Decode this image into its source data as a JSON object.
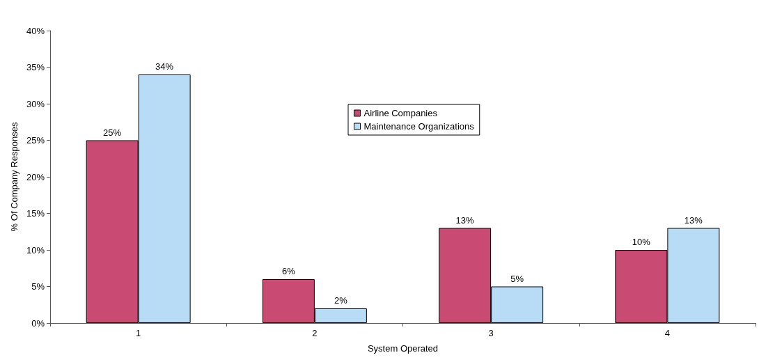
{
  "chart_data": {
    "type": "bar",
    "xlabel": "System Operated",
    "ylabel": "% Of Company Responses",
    "categories": [
      "1",
      "2",
      "3",
      "4"
    ],
    "series": [
      {
        "name": "Airline Companies",
        "color": "#c94a72",
        "values": [
          25,
          6,
          13,
          10
        ],
        "value_labels": [
          "25%",
          "6%",
          "13%",
          "10%"
        ]
      },
      {
        "name": "Maintenance Organizations",
        "color": "#b8dcf6",
        "values": [
          34,
          2,
          5,
          13
        ],
        "value_labels": [
          "34%",
          "2%",
          "5%",
          "13%"
        ]
      }
    ],
    "ylim": [
      0,
      40
    ],
    "yticks": [
      {
        "value": 0,
        "label": "0%"
      },
      {
        "value": 5,
        "label": "5%"
      },
      {
        "value": 10,
        "label": "10%"
      },
      {
        "value": 15,
        "label": "15%"
      },
      {
        "value": 20,
        "label": "20%"
      },
      {
        "value": 25,
        "label": "25%"
      },
      {
        "value": 30,
        "label": "30%"
      },
      {
        "value": 35,
        "label": "35%"
      },
      {
        "value": 40,
        "label": "40%"
      }
    ],
    "grid": false,
    "legend": "center"
  }
}
